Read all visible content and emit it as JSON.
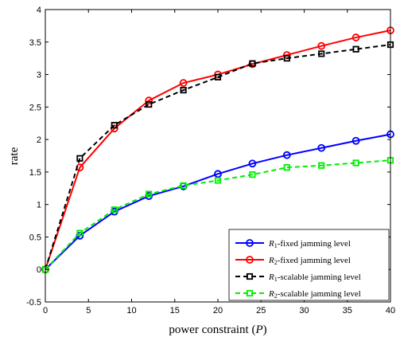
{
  "chart_data": {
    "type": "line",
    "xlabel": "power constraint (P)",
    "ylabel": "rate",
    "xlim": [
      0,
      40
    ],
    "ylim": [
      -0.5,
      4
    ],
    "xticks": [
      0,
      5,
      10,
      15,
      20,
      25,
      30,
      35,
      40
    ],
    "yticks": [
      -0.5,
      0,
      0.5,
      1,
      1.5,
      2,
      2.5,
      3,
      3.5,
      4
    ],
    "grid": false,
    "legend_position": "bottom-right",
    "series": [
      {
        "name": "R1-fixed jamming level",
        "name_main": "R",
        "name_sub": "1",
        "name_rest": "-fixed jamming level",
        "color": "#0000ff",
        "line_style": "solid",
        "marker": "circle",
        "x": [
          0,
          4,
          8,
          12,
          16,
          20,
          24,
          28,
          32,
          36,
          40
        ],
        "y": [
          0,
          0.52,
          0.89,
          1.13,
          1.28,
          1.47,
          1.63,
          1.76,
          1.87,
          1.98,
          2.08
        ]
      },
      {
        "name": "R2-fixed jamming level",
        "name_main": "R",
        "name_sub": "2",
        "name_rest": "-fixed jamming level",
        "color": "#ff0000",
        "line_style": "solid",
        "marker": "circle",
        "x": [
          0,
          4,
          8,
          12,
          16,
          20,
          24,
          28,
          32,
          36,
          40
        ],
        "y": [
          0,
          1.57,
          2.17,
          2.6,
          2.87,
          3.0,
          3.16,
          3.3,
          3.44,
          3.57,
          3.68
        ]
      },
      {
        "name": "R1-scalable jamming level",
        "name_main": "R",
        "name_sub": "1",
        "name_rest": "-scalable jamming level",
        "color": "#000000",
        "line_style": "dashed",
        "marker": "square",
        "x": [
          0,
          4,
          8,
          12,
          16,
          20,
          24,
          28,
          32,
          36,
          40
        ],
        "y": [
          0,
          1.71,
          2.22,
          2.54,
          2.76,
          2.96,
          3.17,
          3.25,
          3.32,
          3.39,
          3.46
        ]
      },
      {
        "name": "R2-scalable jamming level",
        "name_main": "R",
        "name_sub": "2",
        "name_rest": "-scalable jamming level",
        "color": "#00ee00",
        "line_style": "dashed",
        "marker": "square",
        "x": [
          0,
          4,
          8,
          12,
          16,
          20,
          24,
          28,
          32,
          36,
          40
        ],
        "y": [
          0,
          0.56,
          0.92,
          1.16,
          1.29,
          1.37,
          1.46,
          1.57,
          1.6,
          1.64,
          1.68
        ]
      }
    ]
  }
}
